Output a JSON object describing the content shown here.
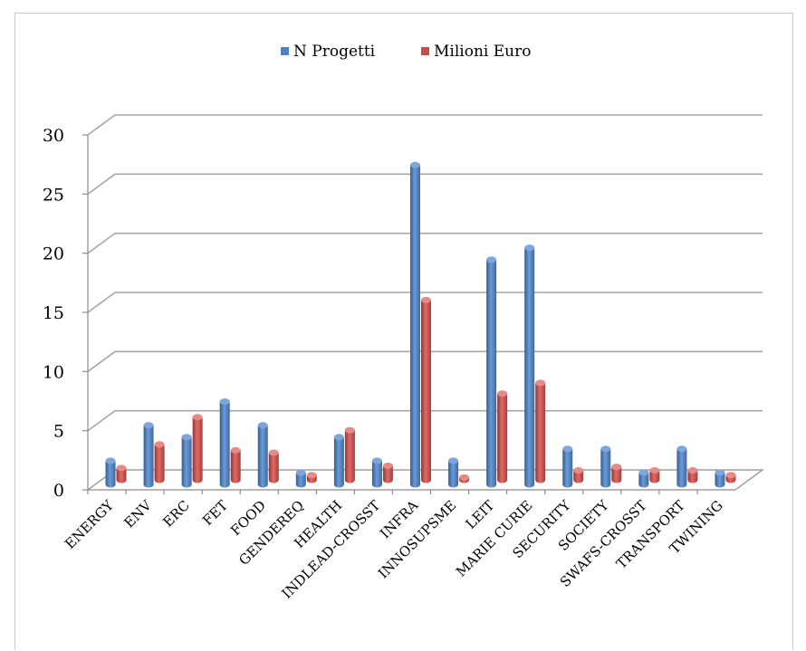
{
  "chart_data": {
    "type": "bar",
    "title": "",
    "xlabel": "",
    "ylabel": "",
    "ylim": [
      0,
      30
    ],
    "y_ticks": [
      0,
      5,
      10,
      15,
      20,
      25,
      30
    ],
    "grid": true,
    "legend_position": "top",
    "categories": [
      "ENERGY",
      "ENV",
      "ERC",
      "FET",
      "FOOD",
      "GENDEREQ",
      "HEALTH",
      "INDLEAD-CROSST",
      "INFRA",
      "INNOSUPSME",
      "LEIT",
      "MARIE CURIE",
      "SECURITY",
      "SOCIETY",
      "SWAFS-CROSST",
      "TRANSPORT",
      "TWINING"
    ],
    "series": [
      {
        "name": "N Progetti",
        "color": "#4f81bd",
        "values": [
          2,
          5,
          4,
          7,
          5,
          1,
          4,
          2,
          27,
          2,
          19,
          20,
          3,
          3,
          1,
          3,
          1
        ]
      },
      {
        "name": "Milioni Euro",
        "color": "#c0504d",
        "values": [
          1,
          3,
          5.3,
          2.5,
          2.3,
          0.4,
          4.2,
          1.2,
          15.2,
          0.2,
          7.3,
          8.2,
          0.8,
          1.1,
          0.8,
          0.8,
          0.4
        ]
      }
    ]
  }
}
